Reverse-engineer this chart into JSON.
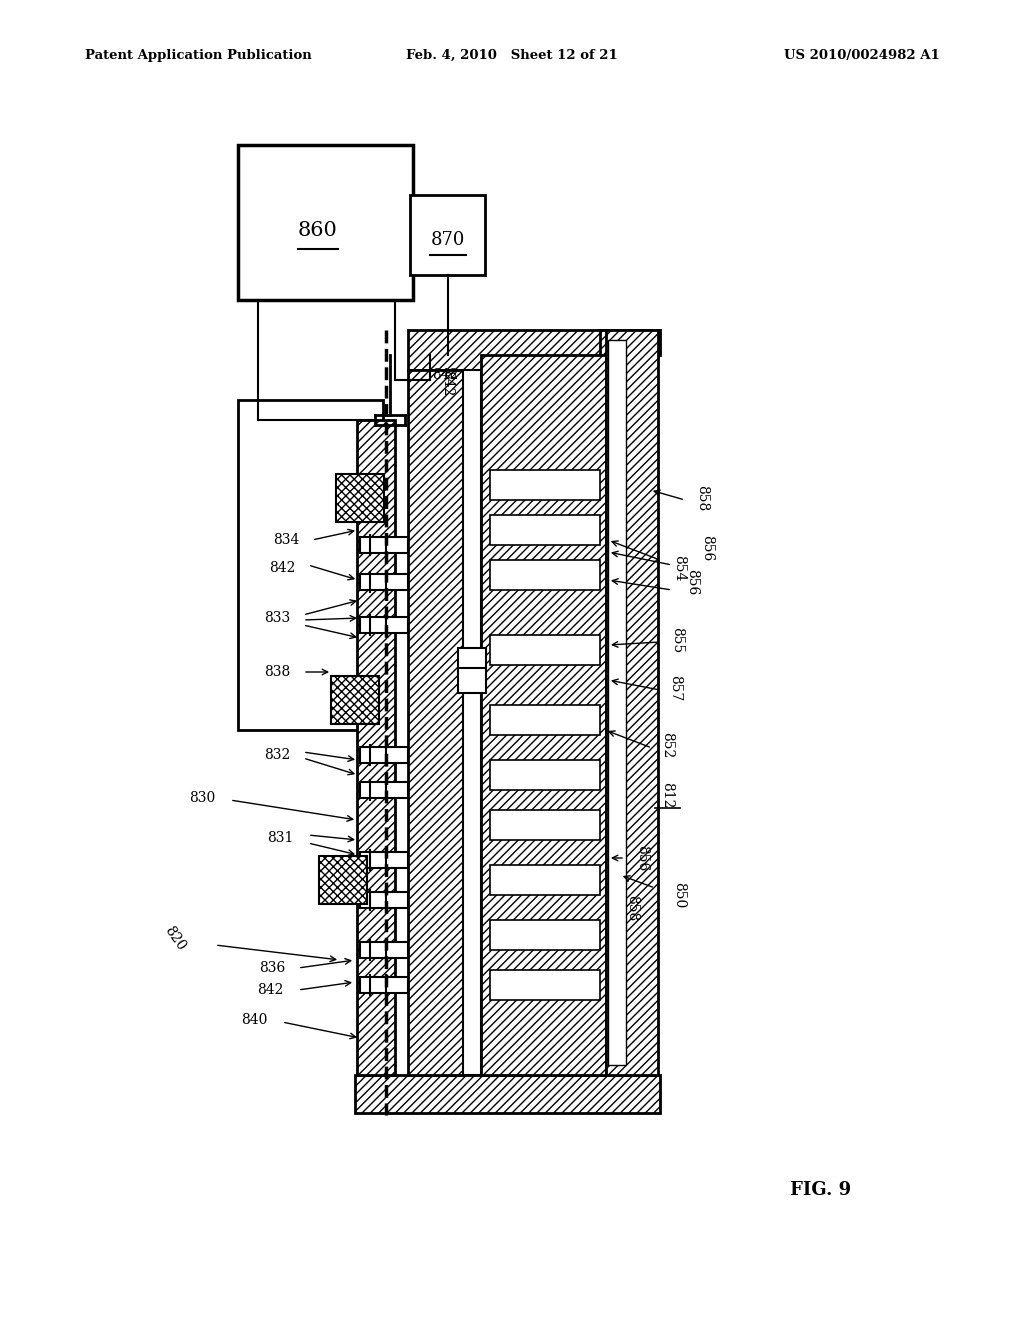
{
  "header_left": "Patent Application Publication",
  "header_mid": "Feb. 4, 2010   Sheet 12 of 21",
  "header_right": "US 2010/0024982 A1",
  "fig_label": "FIG. 9",
  "bg_color": "#ffffff"
}
